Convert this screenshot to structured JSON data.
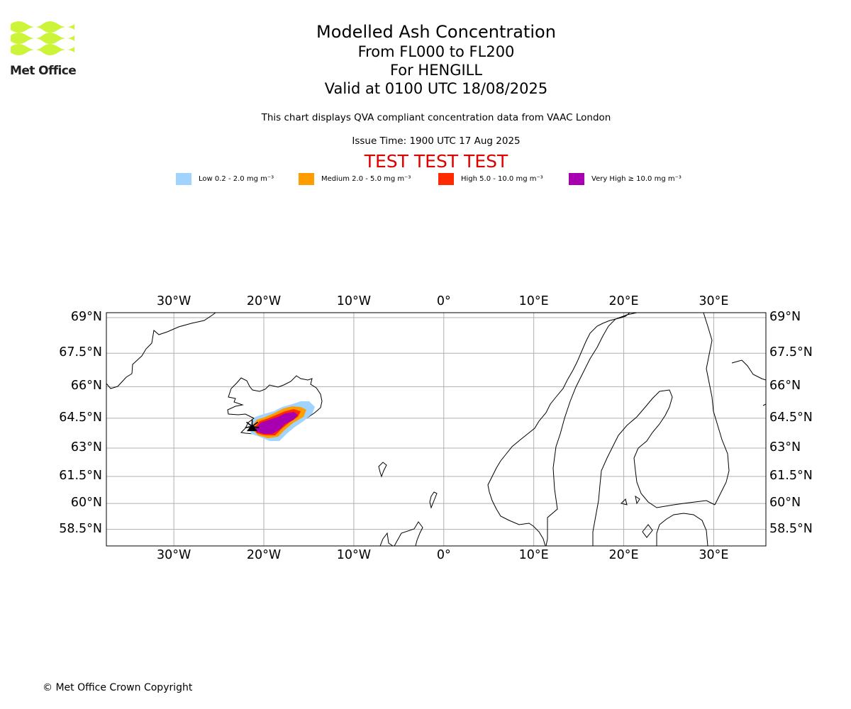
{
  "logo": {
    "text": "Met Office",
    "color": "#ccf53a"
  },
  "titles": {
    "main": "Modelled Ash Concentration",
    "levels": "From FL000 to FL200",
    "volcano": "For HENGILL",
    "valid": "Valid at 0100 UTC 18/08/2025"
  },
  "subtitle": "This chart displays QVA compliant concentration data from VAAC London",
  "issue_time": "Issue Time: 1900 UTC 17 Aug 2025",
  "test_banner": "TEST TEST TEST",
  "legend": [
    {
      "label": "Low 0.2 - 2.0 mg m⁻³",
      "color": "#a0d4ff"
    },
    {
      "label": "Medium 2.0 - 5.0 mg m⁻³",
      "color": "#ff9c00"
    },
    {
      "label": "High 5.0 - 10.0 mg m⁻³",
      "color": "#ff2a00"
    },
    {
      "label": "Very High  ≥  10.0 mg m⁻³",
      "color": "#a800b0"
    }
  ],
  "map": {
    "extent": {
      "lon": [
        -37.5,
        35.8
      ],
      "lat": [
        57.5,
        69.2
      ]
    },
    "lon_ticks": [
      {
        "value": -30,
        "label": "30°W"
      },
      {
        "value": -20,
        "label": "20°W"
      },
      {
        "value": -10,
        "label": "10°W"
      },
      {
        "value": 0,
        "label": "0°"
      },
      {
        "value": 10,
        "label": "10°E"
      },
      {
        "value": 20,
        "label": "20°E"
      },
      {
        "value": 30,
        "label": "30°E"
      }
    ],
    "lat_ticks": [
      {
        "value": 69,
        "label": "69°N"
      },
      {
        "value": 67.5,
        "label": "67.5°N"
      },
      {
        "value": 66,
        "label": "66°N"
      },
      {
        "value": 64.5,
        "label": "64.5°N"
      },
      {
        "value": 63,
        "label": "63°N"
      },
      {
        "value": 61.5,
        "label": "61.5°N"
      },
      {
        "value": 60,
        "label": "60°N"
      },
      {
        "value": 58.5,
        "label": "58.5°N"
      }
    ],
    "volcano_location": {
      "lon": -21.3,
      "lat": 64.1
    },
    "grid_color": "#b0b0b0"
  },
  "copyright": "© Met Office Crown Copyright"
}
